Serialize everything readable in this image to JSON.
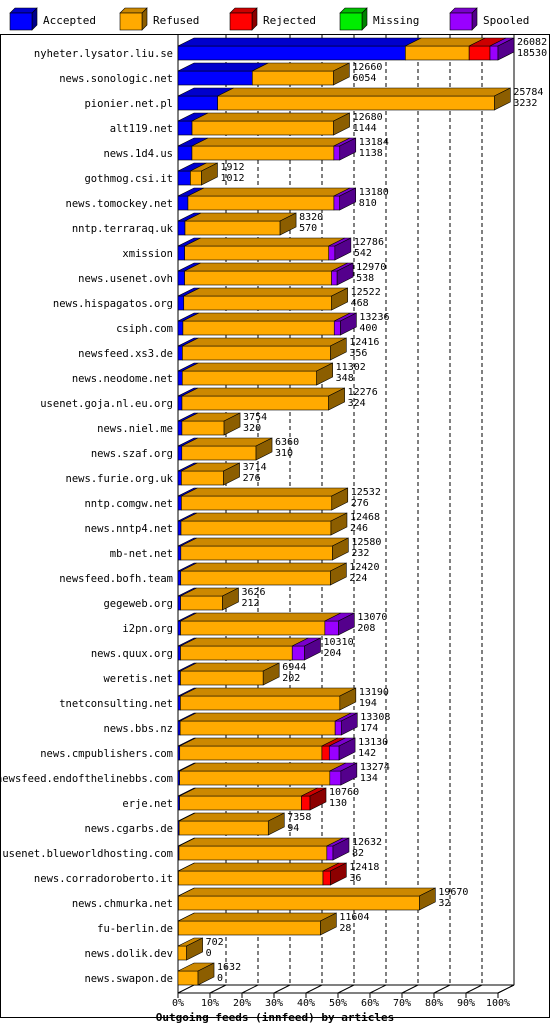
{
  "colors": {
    "accepted": "#0000ff",
    "refused": "#ffaa00",
    "rejected": "#ff0000",
    "missing": "#00ee00",
    "spooled": "#9900ff",
    "grid": "#000000",
    "background": "#ffffff"
  },
  "chart_data": {
    "type": "bar",
    "orientation": "horizontal",
    "stacked": true,
    "style": "3d",
    "title": "",
    "xlabel": "Outgoing feeds (innfeed) by articles",
    "ylabel": "",
    "xlim": [
      0,
      26082
    ],
    "x_ticks": [
      "0%",
      "10%",
      "20%",
      "30%",
      "40%",
      "50%",
      "60%",
      "70%",
      "80%",
      "90%",
      "100%"
    ],
    "grid": "vertical dashed",
    "legend_position": "top",
    "legend": [
      "Accepted",
      "Refused",
      "Rejected",
      "Missing",
      "Spooled"
    ],
    "rows": [
      {
        "name": "nyheter.lysator.liu.se",
        "total": 26082,
        "shown": 18530,
        "accepted": 18530,
        "refused": 5200,
        "rejected": 1700,
        "missing": 0,
        "spooled": 652
      },
      {
        "name": "news.sonologic.net",
        "total": 12660,
        "shown": 6054,
        "accepted": 6054,
        "refused": 6606,
        "rejected": 0,
        "missing": 0,
        "spooled": 0
      },
      {
        "name": "pionier.net.pl",
        "total": 25784,
        "shown": 3232,
        "accepted": 3232,
        "refused": 22552,
        "rejected": 0,
        "missing": 0,
        "spooled": 0
      },
      {
        "name": "alt119.net",
        "total": 12680,
        "shown": 1144,
        "accepted": 1144,
        "refused": 11536,
        "rejected": 0,
        "missing": 0,
        "spooled": 0
      },
      {
        "name": "news.1d4.us",
        "total": 13184,
        "shown": 1138,
        "accepted": 1138,
        "refused": 11566,
        "rejected": 0,
        "missing": 0,
        "spooled": 480
      },
      {
        "name": "gothmog.csi.it",
        "total": 1912,
        "shown": 1012,
        "accepted": 1012,
        "refused": 900,
        "rejected": 0,
        "missing": 0,
        "spooled": 0
      },
      {
        "name": "news.tomockey.net",
        "total": 13180,
        "shown": 810,
        "accepted": 810,
        "refused": 11900,
        "rejected": 0,
        "missing": 0,
        "spooled": 470
      },
      {
        "name": "nntp.terraraq.uk",
        "total": 8320,
        "shown": 570,
        "accepted": 570,
        "refused": 7750,
        "rejected": 0,
        "missing": 0,
        "spooled": 0
      },
      {
        "name": "xmission",
        "total": 12786,
        "shown": 542,
        "accepted": 542,
        "refused": 11744,
        "rejected": 0,
        "missing": 0,
        "spooled": 500
      },
      {
        "name": "news.usenet.ovh",
        "total": 12970,
        "shown": 538,
        "accepted": 538,
        "refused": 11982,
        "rejected": 0,
        "missing": 0,
        "spooled": 450
      },
      {
        "name": "news.hispagatos.org",
        "total": 12522,
        "shown": 468,
        "accepted": 468,
        "refused": 12054,
        "rejected": 0,
        "missing": 0,
        "spooled": 0
      },
      {
        "name": "csiph.com",
        "total": 13236,
        "shown": 400,
        "accepted": 400,
        "refused": 12336,
        "rejected": 0,
        "missing": 0,
        "spooled": 500
      },
      {
        "name": "newsfeed.xs3.de",
        "total": 12416,
        "shown": 356,
        "accepted": 356,
        "refused": 12060,
        "rejected": 0,
        "missing": 0,
        "spooled": 0
      },
      {
        "name": "news.neodome.net",
        "total": 11302,
        "shown": 348,
        "accepted": 348,
        "refused": 10954,
        "rejected": 0,
        "missing": 0,
        "spooled": 0
      },
      {
        "name": "usenet.goja.nl.eu.org",
        "total": 12276,
        "shown": 324,
        "accepted": 324,
        "refused": 11952,
        "rejected": 0,
        "missing": 0,
        "spooled": 0
      },
      {
        "name": "news.niel.me",
        "total": 3754,
        "shown": 320,
        "accepted": 320,
        "refused": 3434,
        "rejected": 0,
        "missing": 0,
        "spooled": 0
      },
      {
        "name": "news.szaf.org",
        "total": 6360,
        "shown": 310,
        "accepted": 310,
        "refused": 6050,
        "rejected": 0,
        "missing": 0,
        "spooled": 0
      },
      {
        "name": "news.furie.org.uk",
        "total": 3714,
        "shown": 276,
        "accepted": 276,
        "refused": 3438,
        "rejected": 0,
        "missing": 0,
        "spooled": 0
      },
      {
        "name": "nntp.comgw.net",
        "total": 12532,
        "shown": 276,
        "accepted": 276,
        "refused": 12256,
        "rejected": 0,
        "missing": 0,
        "spooled": 0
      },
      {
        "name": "news.nntp4.net",
        "total": 12468,
        "shown": 246,
        "accepted": 246,
        "refused": 12222,
        "rejected": 0,
        "missing": 0,
        "spooled": 0
      },
      {
        "name": "mb-net.net",
        "total": 12580,
        "shown": 232,
        "accepted": 232,
        "refused": 12348,
        "rejected": 0,
        "missing": 0,
        "spooled": 0
      },
      {
        "name": "newsfeed.bofh.team",
        "total": 12420,
        "shown": 224,
        "accepted": 224,
        "refused": 12196,
        "rejected": 0,
        "missing": 0,
        "spooled": 0
      },
      {
        "name": "gegeweb.org",
        "total": 3626,
        "shown": 212,
        "accepted": 212,
        "refused": 3414,
        "rejected": 0,
        "missing": 0,
        "spooled": 0
      },
      {
        "name": "i2pn.org",
        "total": 13070,
        "shown": 208,
        "accepted": 208,
        "refused": 11762,
        "rejected": 0,
        "missing": 0,
        "spooled": 1100
      },
      {
        "name": "news.quux.org",
        "total": 10310,
        "shown": 204,
        "accepted": 204,
        "refused": 9106,
        "rejected": 0,
        "missing": 0,
        "spooled": 1000
      },
      {
        "name": "weretis.net",
        "total": 6944,
        "shown": 202,
        "accepted": 202,
        "refused": 6742,
        "rejected": 0,
        "missing": 0,
        "spooled": 0
      },
      {
        "name": "tnetconsulting.net",
        "total": 13190,
        "shown": 194,
        "accepted": 194,
        "refused": 12996,
        "rejected": 0,
        "missing": 0,
        "spooled": 0
      },
      {
        "name": "news.bbs.nz",
        "total": 13308,
        "shown": 174,
        "accepted": 174,
        "refused": 12634,
        "rejected": 0,
        "missing": 0,
        "spooled": 500
      },
      {
        "name": "news.cmpublishers.com",
        "total": 13130,
        "shown": 142,
        "accepted": 142,
        "refused": 11588,
        "rejected": 600,
        "missing": 0,
        "spooled": 800
      },
      {
        "name": "newsfeed.endofthelinebbs.com",
        "total": 13274,
        "shown": 134,
        "accepted": 134,
        "refused": 12240,
        "rejected": 0,
        "missing": 0,
        "spooled": 900
      },
      {
        "name": "erje.net",
        "total": 10760,
        "shown": 130,
        "accepted": 130,
        "refused": 9930,
        "rejected": 700,
        "missing": 0,
        "spooled": 0
      },
      {
        "name": "news.cgarbs.de",
        "total": 7358,
        "shown": 94,
        "accepted": 94,
        "refused": 7264,
        "rejected": 0,
        "missing": 0,
        "spooled": 0
      },
      {
        "name": "usenet.blueworldhosting.com",
        "total": 12632,
        "shown": 82,
        "accepted": 82,
        "refused": 12050,
        "rejected": 0,
        "missing": 0,
        "spooled": 500
      },
      {
        "name": "news.corradoroberto.it",
        "total": 12418,
        "shown": 36,
        "accepted": 36,
        "refused": 11782,
        "rejected": 600,
        "missing": 0,
        "spooled": 0
      },
      {
        "name": "news.chmurka.net",
        "total": 19670,
        "shown": 32,
        "accepted": 32,
        "refused": 19638,
        "rejected": 0,
        "missing": 0,
        "spooled": 0
      },
      {
        "name": "fu-berlin.de",
        "total": 11604,
        "shown": 28,
        "accepted": 28,
        "refused": 11576,
        "rejected": 0,
        "missing": 0,
        "spooled": 0
      },
      {
        "name": "news.dolik.dev",
        "total": 702,
        "shown": 0,
        "accepted": 0,
        "refused": 702,
        "rejected": 0,
        "missing": 0,
        "spooled": 0
      },
      {
        "name": "news.swapon.de",
        "total": 1632,
        "shown": 0,
        "accepted": 0,
        "refused": 1632,
        "rejected": 0,
        "missing": 0,
        "spooled": 0
      }
    ]
  }
}
